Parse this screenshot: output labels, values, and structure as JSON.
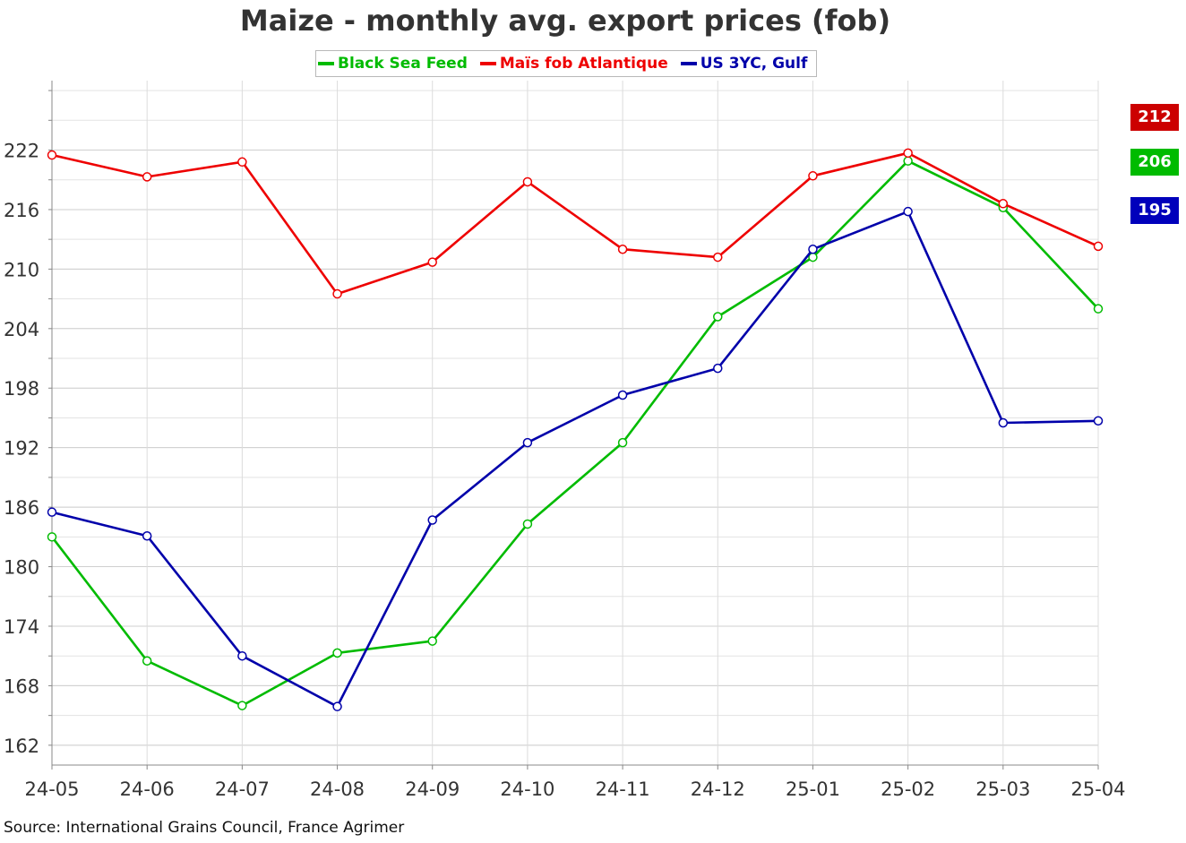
{
  "chart_data": {
    "type": "line",
    "title": "Maize - monthly avg. export prices (fob)",
    "categories": [
      "24-05",
      "24-06",
      "24-07",
      "24-08",
      "24-09",
      "24-10",
      "24-11",
      "24-12",
      "25-01",
      "25-02",
      "25-03",
      "25-04"
    ],
    "yticks": [
      162,
      168,
      174,
      180,
      186,
      192,
      198,
      204,
      210,
      216,
      222
    ],
    "ylim": [
      160,
      229
    ],
    "grid": true,
    "legend_position": "top",
    "series": [
      {
        "name": "Black Sea Feed",
        "color": "#00bb00",
        "values": [
          183,
          170.5,
          166,
          171.3,
          172.5,
          184.3,
          192.5,
          205.2,
          211.2,
          220.9,
          216.2,
          206
        ]
      },
      {
        "name": "Maïs fob Atlantique",
        "color": "#ee0000",
        "values": [
          221.5,
          219.3,
          220.8,
          207.5,
          210.7,
          218.8,
          212,
          211.2,
          219.4,
          221.7,
          216.6,
          212.3
        ]
      },
      {
        "name": "US 3YC, Gulf",
        "color": "#0000aa",
        "values": [
          185.5,
          183.1,
          171,
          165.9,
          184.7,
          192.5,
          197.3,
          200,
          212,
          215.8,
          194.5,
          194.7
        ]
      }
    ],
    "end_labels": [
      {
        "text": "212",
        "color": "#cc0000"
      },
      {
        "text": "206",
        "color": "#00bb00"
      },
      {
        "text": "195",
        "color": "#0000bb"
      }
    ]
  },
  "source": "Source: International Grains Council, France Agrimer"
}
